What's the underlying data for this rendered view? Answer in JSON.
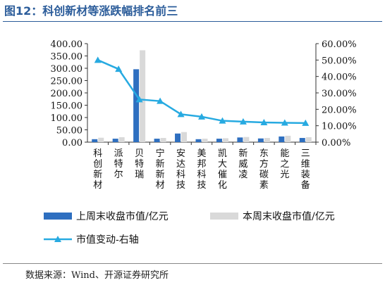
{
  "figure": {
    "title": "图12：科创新材等涨跌幅排名前三",
    "source": "数据来源：Wind、开源证券研究所"
  },
  "chart_data": {
    "type": "bar",
    "categories": [
      "科创新材",
      "派特尔",
      "贝特瑞",
      "宁新新材",
      "安达科技",
      "美邦科技",
      "凯大催化",
      "新威凌",
      "东方碳素",
      "能之光",
      "三维装备"
    ],
    "series": [
      {
        "name": "上周末收盘市值/亿元",
        "type": "bar",
        "axis": "left",
        "values": [
          12,
          14,
          296,
          14,
          35,
          12,
          14,
          19,
          15,
          23,
          17
        ],
        "color": "#2e6fc0"
      },
      {
        "name": "本周末收盘市值/亿元",
        "type": "bar",
        "axis": "left",
        "values": [
          18,
          20,
          373,
          17,
          41,
          14,
          16,
          21,
          17,
          26,
          20
        ],
        "color": "#d9d9d9"
      },
      {
        "name": "市值变动-右轴",
        "type": "line",
        "axis": "right",
        "values": [
          50.0,
          44.5,
          26.0,
          25.0,
          17.0,
          15.5,
          13.0,
          12.5,
          12.0,
          11.8,
          11.6
        ],
        "color": "#27aae1"
      }
    ],
    "y_left": {
      "min": 0,
      "max": 400,
      "step": 50,
      "tick_labels": [
        "0.00",
        "50.00",
        "100.00",
        "150.00",
        "200.00",
        "250.00",
        "300.00",
        "350.00",
        "400.00"
      ]
    },
    "y_right": {
      "min": 0,
      "max": 60,
      "step": 10,
      "tick_labels": [
        "0.00%",
        "10.00%",
        "20.00%",
        "30.00%",
        "40.00%",
        "50.00%",
        "60.00%"
      ]
    },
    "grid": false,
    "legend_position": "bottom"
  }
}
